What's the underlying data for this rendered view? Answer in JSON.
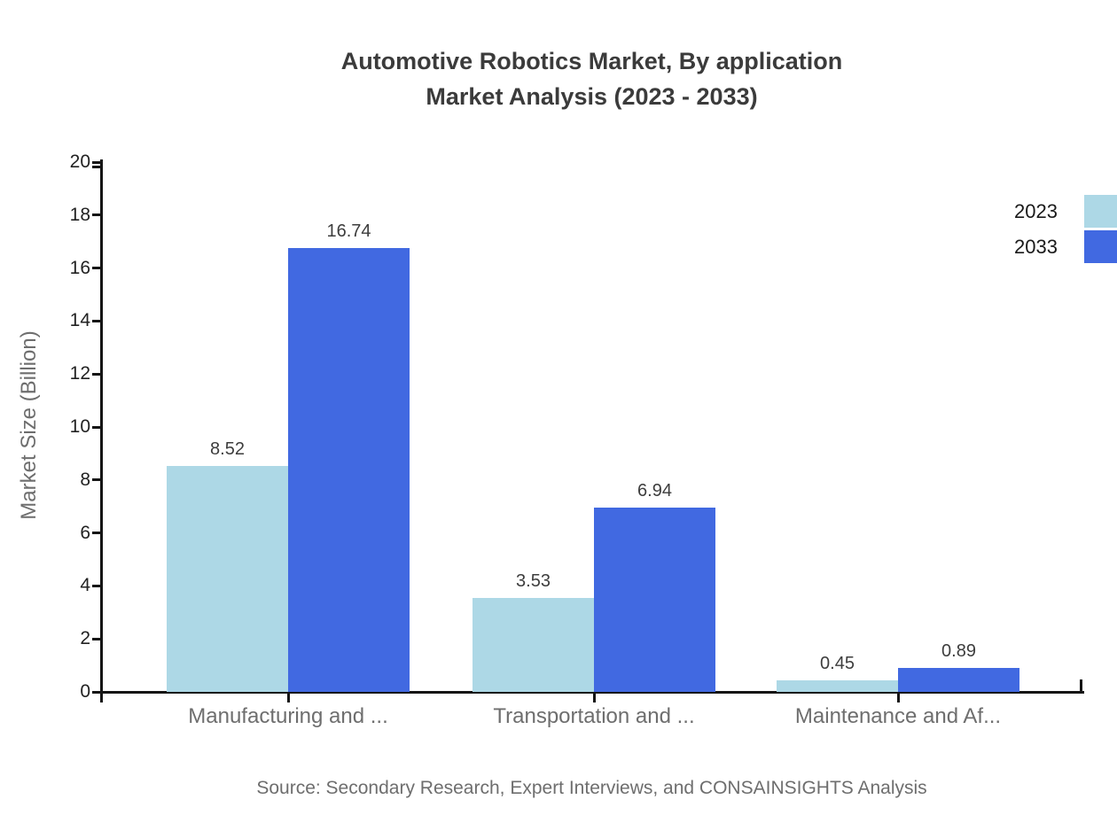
{
  "title": {
    "line1": "Automotive Robotics Market, By application",
    "line2": "Market Analysis (2023 - 2033)"
  },
  "source": {
    "text": "Source: Secondary Research, Expert Interviews, and CONSAINSIGHTS Analysis"
  },
  "legend": {
    "position": "right",
    "items": [
      {
        "label": "2023",
        "color": "#ADD8E6"
      },
      {
        "label": "2033",
        "color": "#4169E1"
      }
    ]
  },
  "chart_data": {
    "type": "bar",
    "title": "Automotive Robotics Market, By application Market Analysis (2023 - 2033)",
    "categories": [
      "Manufacturing and ...",
      "Transportation and ...",
      "Maintenance and Af..."
    ],
    "series": [
      {
        "name": "2023",
        "color": "#ADD8E6",
        "values": [
          8.52,
          3.53,
          0.45
        ]
      },
      {
        "name": "2033",
        "color": "#4169E1",
        "values": [
          16.74,
          6.94,
          0.89
        ]
      }
    ],
    "xlabel": "",
    "ylabel": "Market Size (Billion)",
    "ylim": [
      0,
      20
    ],
    "ytick_step": 2,
    "yticks": [
      0,
      2,
      4,
      6,
      8,
      10,
      12,
      14,
      16,
      18,
      20
    ],
    "grid": false,
    "legend_position": "right",
    "value_labels": true
  },
  "colors": {
    "series_2023": "#ADD8E6",
    "series_2033": "#4169E1",
    "axis": "#151515",
    "title_text": "#3b3b3b",
    "muted_text": "#6e6e6e",
    "tick_text": "#222222",
    "value_text": "#3d3d3d"
  }
}
